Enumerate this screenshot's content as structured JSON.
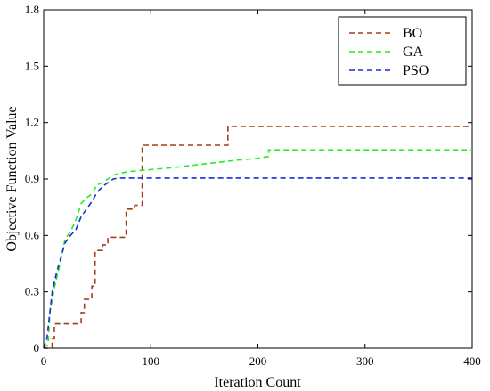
{
  "chart_data": {
    "type": "line",
    "title": "",
    "xlabel": "Iteration Count",
    "ylabel": "Objective Function Value",
    "xlim": [
      0,
      400
    ],
    "ylim": [
      0,
      1.8
    ],
    "xticks": [
      0,
      100,
      200,
      300,
      400
    ],
    "yticks": [
      0,
      0.3,
      0.6,
      0.9,
      1.2,
      1.5,
      1.8
    ],
    "xtick_labels": [
      "0",
      "100",
      "200",
      "300",
      "400"
    ],
    "ytick_labels": [
      "0",
      "0.3",
      "0.6",
      "0.9",
      "1.2",
      "1.5",
      "1.8"
    ],
    "grid": false,
    "legend_position": "top-right",
    "series": [
      {
        "name": "BO",
        "color": "#a0401a",
        "line_style": "dashed",
        "x": [
          0,
          8,
          8,
          10,
          10,
          35,
          35,
          38,
          38,
          45,
          45,
          48,
          48,
          55,
          55,
          60,
          60,
          77,
          77,
          85,
          85,
          92,
          92,
          172,
          172,
          400
        ],
        "y": [
          0,
          0,
          0.05,
          0.05,
          0.13,
          0.13,
          0.19,
          0.19,
          0.26,
          0.26,
          0.33,
          0.33,
          0.52,
          0.52,
          0.55,
          0.55,
          0.59,
          0.59,
          0.74,
          0.74,
          0.76,
          0.76,
          1.08,
          1.08,
          1.18,
          1.18
        ]
      },
      {
        "name": "GA",
        "color": "#22ee22",
        "line_style": "dashed",
        "x": [
          0,
          4,
          6,
          10,
          15,
          20,
          25,
          30,
          35,
          40,
          45,
          50,
          55,
          60,
          65,
          70,
          80,
          100,
          120,
          150,
          180,
          200,
          210,
          210,
          400
        ],
        "y": [
          0,
          0.02,
          0.2,
          0.32,
          0.44,
          0.58,
          0.62,
          0.68,
          0.77,
          0.8,
          0.82,
          0.87,
          0.88,
          0.9,
          0.92,
          0.93,
          0.94,
          0.95,
          0.96,
          0.98,
          1.0,
          1.01,
          1.02,
          1.055,
          1.055
        ]
      },
      {
        "name": "PSO",
        "color": "#1c2bd6",
        "line_style": "dashed",
        "x": [
          0,
          3,
          5,
          8,
          12,
          16,
          20,
          25,
          30,
          35,
          40,
          45,
          50,
          55,
          60,
          65,
          70,
          400
        ],
        "y": [
          0,
          0.05,
          0.15,
          0.3,
          0.4,
          0.48,
          0.56,
          0.6,
          0.63,
          0.7,
          0.74,
          0.78,
          0.83,
          0.86,
          0.88,
          0.9,
          0.905,
          0.905
        ]
      }
    ]
  }
}
